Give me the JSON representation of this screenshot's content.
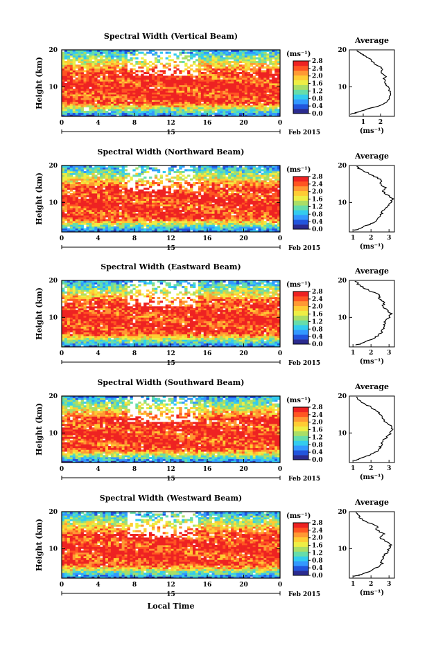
{
  "figure": {
    "xlabel": "Local Time",
    "date_day": "15",
    "date_month": "Feb 2015",
    "colorbar_unit": "(ms⁻¹)",
    "avg_title": "Average",
    "avg_unit": "(ms⁻¹)",
    "ylabel": "Height (km)"
  },
  "colors": {
    "colormap": [
      "#2b2b8f",
      "#2255dd",
      "#3399ff",
      "#33ccee",
      "#66ddaa",
      "#aade66",
      "#eeee44",
      "#ffcc33",
      "#ff9933",
      "#ff5522",
      "#ee2222"
    ],
    "background": "#ffffff"
  },
  "chart_data": [
    {
      "type": "heatmap",
      "title": "Spectral Width (Vertical Beam)",
      "xlabel": "Local Time",
      "ylabel": "Height (km)",
      "xlim": [
        0,
        24
      ],
      "ylim": [
        2,
        20
      ],
      "x_ticks": [
        "0",
        "4",
        "8",
        "12",
        "16",
        "20",
        "0"
      ],
      "y_ticks": [
        "20",
        "10"
      ],
      "colorbar_ticks": [
        "2.8",
        "2.4",
        "2.0",
        "1.6",
        "1.2",
        "0.8",
        "0.4",
        "0.0"
      ],
      "colorbar_range": [
        0,
        2.8
      ],
      "average_profile": {
        "x_ticks": [
          "1",
          "2"
        ],
        "xlim": [
          0.2,
          2.8
        ],
        "height_km": [
          2.5,
          3,
          4,
          5,
          6,
          7,
          8,
          9,
          10,
          11,
          12,
          13,
          14,
          15,
          16,
          17,
          18,
          19,
          20
        ],
        "width_ms": [
          0.3,
          0.6,
          1.2,
          2.0,
          2.4,
          2.5,
          2.6,
          2.5,
          2.4,
          2.3,
          2.2,
          2.3,
          2.0,
          2.1,
          1.7,
          1.5,
          1.2,
          0.9,
          0.5
        ]
      }
    },
    {
      "type": "heatmap",
      "title": "Spectral Width (Northward Beam)",
      "xlabel": "Local Time",
      "ylabel": "Height (km)",
      "xlim": [
        0,
        24
      ],
      "ylim": [
        2,
        20
      ],
      "x_ticks": [
        "0",
        "4",
        "8",
        "12",
        "16",
        "20",
        "0"
      ],
      "y_ticks": [
        "20",
        "10"
      ],
      "colorbar_ticks": [
        "2.8",
        "2.4",
        "2.0",
        "1.6",
        "1.2",
        "0.8",
        "0.4",
        "0.0"
      ],
      "colorbar_range": [
        0,
        2.8
      ],
      "average_profile": {
        "x_ticks": [
          "1",
          "2",
          "3"
        ],
        "xlim": [
          0.8,
          3.3
        ],
        "height_km": [
          2.5,
          3,
          4,
          5,
          6,
          7,
          8,
          9,
          10,
          11,
          12,
          13,
          14,
          15,
          16,
          17,
          18,
          19,
          20
        ],
        "width_ms": [
          1.1,
          1.4,
          1.9,
          2.3,
          2.5,
          2.6,
          2.7,
          2.9,
          3.1,
          3.2,
          2.9,
          2.7,
          2.8,
          2.5,
          2.6,
          2.2,
          1.8,
          1.4,
          1.1
        ]
      }
    },
    {
      "type": "heatmap",
      "title": "Spectral Width (Eastward Beam)",
      "xlabel": "Local Time",
      "ylabel": "Height (km)",
      "xlim": [
        0,
        24
      ],
      "ylim": [
        2,
        20
      ],
      "x_ticks": [
        "0",
        "4",
        "8",
        "12",
        "16",
        "20",
        "0"
      ],
      "y_ticks": [
        "20",
        "10"
      ],
      "colorbar_ticks": [
        "2.8",
        "2.4",
        "2.0",
        "1.6",
        "1.2",
        "0.8",
        "0.4",
        "0.0"
      ],
      "colorbar_range": [
        0,
        2.8
      ],
      "average_profile": {
        "x_ticks": [
          "1",
          "2",
          "3"
        ],
        "xlim": [
          0.8,
          3.3
        ],
        "height_km": [
          2.5,
          3,
          4,
          5,
          6,
          7,
          8,
          9,
          10,
          11,
          12,
          13,
          14,
          15,
          16,
          17,
          18,
          19,
          20
        ],
        "width_ms": [
          1.2,
          1.5,
          2.0,
          2.4,
          2.6,
          2.7,
          2.7,
          2.8,
          3.0,
          3.1,
          2.9,
          2.6,
          2.8,
          2.4,
          2.5,
          2.0,
          1.6,
          1.3,
          1.1
        ]
      }
    },
    {
      "type": "heatmap",
      "title": "Spectral Width (Southward Beam)",
      "xlabel": "Local Time",
      "ylabel": "Height (km)",
      "xlim": [
        0,
        24
      ],
      "ylim": [
        2,
        20
      ],
      "x_ticks": [
        "0",
        "4",
        "8",
        "12",
        "16",
        "20",
        "0"
      ],
      "y_ticks": [
        "20",
        "10"
      ],
      "colorbar_ticks": [
        "2.8",
        "2.4",
        "2.0",
        "1.6",
        "1.2",
        "0.8",
        "0.4",
        "0.0"
      ],
      "colorbar_range": [
        0,
        2.8
      ],
      "average_profile": {
        "x_ticks": [
          "1",
          "2",
          "3"
        ],
        "xlim": [
          0.8,
          3.3
        ],
        "height_km": [
          2.5,
          3,
          4,
          5,
          6,
          7,
          8,
          9,
          10,
          11,
          12,
          13,
          14,
          15,
          16,
          17,
          18,
          19,
          20
        ],
        "width_ms": [
          1.1,
          1.4,
          1.9,
          2.3,
          2.5,
          2.6,
          2.7,
          2.9,
          3.1,
          3.2,
          3.1,
          2.8,
          2.6,
          2.5,
          2.3,
          2.0,
          1.6,
          1.3,
          1.1
        ]
      }
    },
    {
      "type": "heatmap",
      "title": "Spectral Width (Westward Beam)",
      "xlabel": "Local Time",
      "ylabel": "Height (km)",
      "xlim": [
        0,
        24
      ],
      "ylim": [
        2,
        20
      ],
      "x_ticks": [
        "0",
        "4",
        "8",
        "12",
        "16",
        "20",
        "0"
      ],
      "y_ticks": [
        "20",
        "10"
      ],
      "colorbar_ticks": [
        "2.8",
        "2.4",
        "2.0",
        "1.6",
        "1.2",
        "0.8",
        "0.4",
        "0.0"
      ],
      "colorbar_range": [
        0,
        2.8
      ],
      "average_profile": {
        "x_ticks": [
          "1",
          "2",
          "3"
        ],
        "xlim": [
          0.8,
          3.3
        ],
        "height_km": [
          2.5,
          3,
          4,
          5,
          6,
          7,
          8,
          9,
          10,
          11,
          12,
          13,
          14,
          15,
          16,
          17,
          18,
          19,
          20
        ],
        "width_ms": [
          1.1,
          1.5,
          2.0,
          2.4,
          2.6,
          2.6,
          2.7,
          2.9,
          3.0,
          3.1,
          2.8,
          2.5,
          2.7,
          2.3,
          2.4,
          1.9,
          1.5,
          1.3,
          1.1
        ]
      }
    }
  ]
}
